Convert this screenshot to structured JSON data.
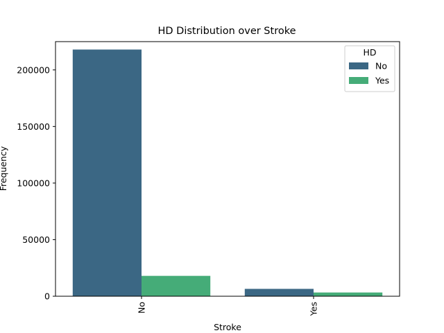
{
  "chart_data": {
    "type": "bar",
    "title": "HD Distribution over Stroke",
    "xlabel": "Stroke",
    "ylabel": "Frequency",
    "categories": [
      "No",
      "Yes"
    ],
    "series": [
      {
        "name": "No",
        "color": "#3b6784",
        "values": [
          218000,
          6500
        ]
      },
      {
        "name": "Yes",
        "color": "#45ac78",
        "values": [
          18000,
          3300
        ]
      }
    ],
    "ylim": [
      0,
      225000
    ],
    "yticks": [
      0,
      50000,
      100000,
      150000,
      200000
    ],
    "ytick_labels": [
      "0",
      "50000",
      "100000",
      "150000",
      "200000"
    ],
    "grid": false,
    "legend": {
      "title": "HD",
      "placement": "top-right"
    }
  }
}
